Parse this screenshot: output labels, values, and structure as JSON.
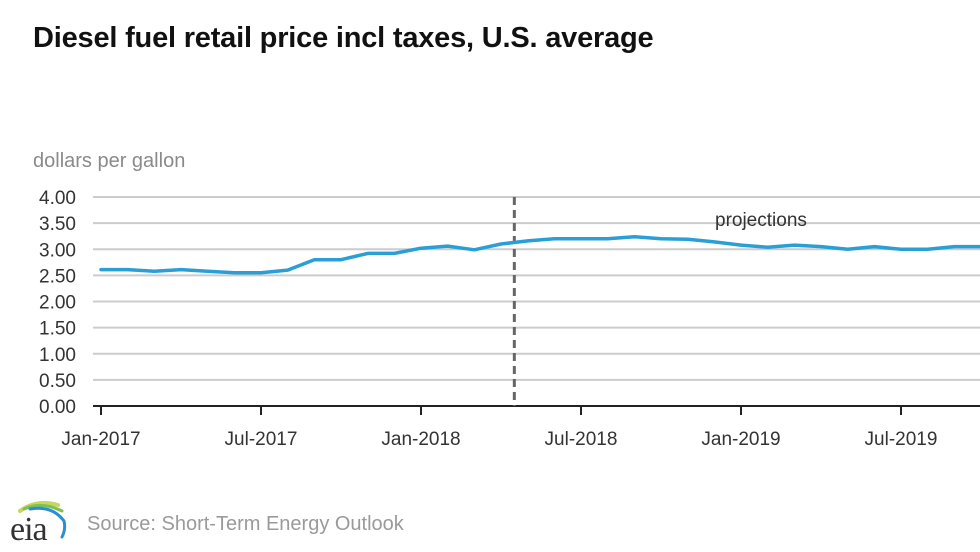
{
  "colors": {
    "line": "#2a9fd6",
    "grid": "#cccccc",
    "axis": "#222222",
    "projection_line": "#666666",
    "title": "#111111",
    "muted_text": "#8a8a8a",
    "tick_text": "#333333"
  },
  "chart_data": {
    "type": "line",
    "title": "Diesel fuel retail price incl taxes, U.S. average",
    "ylabel": "dollars per gallon",
    "xlabel": "",
    "ylim": [
      0,
      4
    ],
    "yticks": [
      "0.00",
      "0.50",
      "1.00",
      "1.50",
      "2.00",
      "2.50",
      "3.00",
      "3.50",
      "4.00"
    ],
    "ytick_values": [
      0,
      0.5,
      1,
      1.5,
      2,
      2.5,
      3,
      3.5,
      4
    ],
    "xticks": [
      "Jan-2017",
      "Jul-2017",
      "Jan-2018",
      "Jul-2018",
      "Jan-2019",
      "Jul-2019"
    ],
    "xtick_month_index": [
      0,
      6,
      12,
      18,
      24,
      30
    ],
    "x_range_months": [
      0,
      33
    ],
    "grid": true,
    "legend": "none",
    "projection_start_month_index": 15.5,
    "annotations": [
      {
        "text": "projections"
      }
    ],
    "series": [
      {
        "name": "Diesel fuel retail price",
        "x": [
          "Jan-2017",
          "Feb-2017",
          "Mar-2017",
          "Apr-2017",
          "May-2017",
          "Jun-2017",
          "Jul-2017",
          "Aug-2017",
          "Sep-2017",
          "Oct-2017",
          "Nov-2017",
          "Dec-2017",
          "Jan-2018",
          "Feb-2018",
          "Mar-2018",
          "Apr-2018",
          "May-2018",
          "Jun-2018",
          "Jul-2018",
          "Aug-2018",
          "Sep-2018",
          "Oct-2018",
          "Nov-2018",
          "Dec-2018",
          "Jan-2019",
          "Feb-2019",
          "Mar-2019",
          "Apr-2019",
          "May-2019",
          "Jun-2019",
          "Jul-2019",
          "Aug-2019",
          "Sep-2019",
          "Oct-2019"
        ],
        "values": [
          2.61,
          2.61,
          2.58,
          2.61,
          2.58,
          2.55,
          2.55,
          2.6,
          2.8,
          2.8,
          2.92,
          2.92,
          3.02,
          3.06,
          2.99,
          3.1,
          3.16,
          3.2,
          3.2,
          3.2,
          3.24,
          3.2,
          3.19,
          3.14,
          3.08,
          3.04,
          3.08,
          3.05,
          3.0,
          3.05,
          3.0,
          3.0,
          3.05,
          3.05
        ]
      }
    ]
  },
  "footer": {
    "source": "Source: Short-Term Energy Outlook",
    "logo_text": "eia"
  }
}
